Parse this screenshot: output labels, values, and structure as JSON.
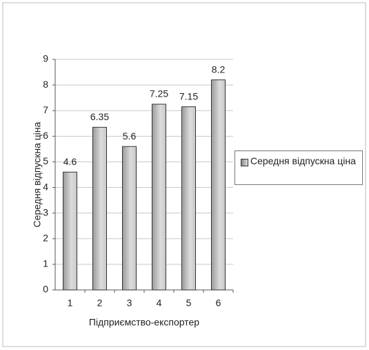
{
  "chart_data": {
    "type": "bar",
    "xlabel": "Підприємство-експортер",
    "ylabel": "Середня відпускна ціна",
    "categories": [
      "1",
      "2",
      "3",
      "4",
      "5",
      "6"
    ],
    "series": [
      {
        "name": "Середня відпускна ціна",
        "color": "#b8b8b8",
        "values": [
          4.6,
          6.35,
          5.6,
          7.25,
          7.15,
          8.2
        ]
      }
    ],
    "ylim": [
      0,
      9
    ],
    "yticks": [
      0,
      1,
      2,
      3,
      4,
      5,
      6,
      7,
      8,
      9
    ],
    "grid": true,
    "legend": "right"
  }
}
